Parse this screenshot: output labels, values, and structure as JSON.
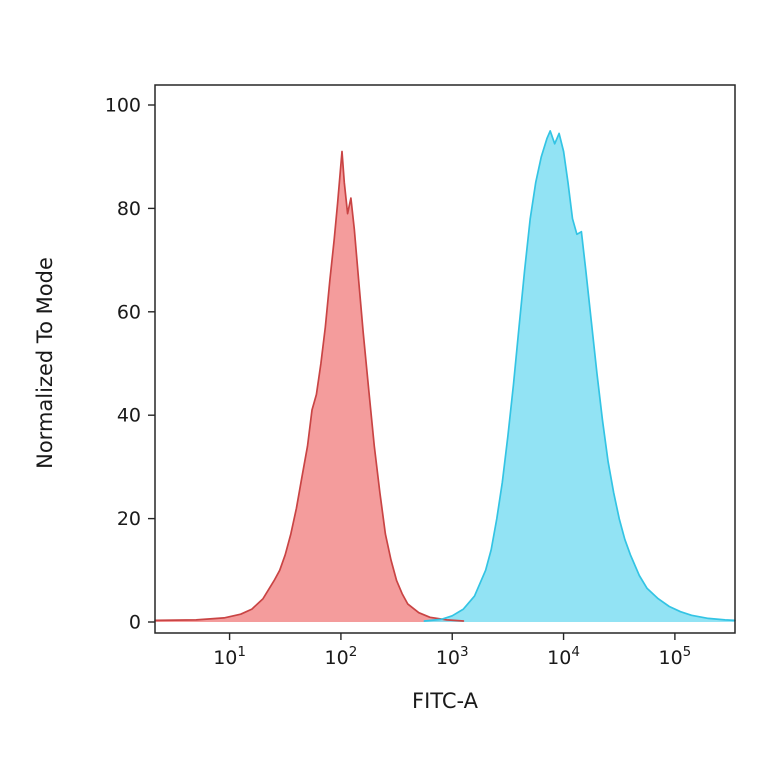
{
  "figure": {
    "background": "#ffffff"
  },
  "chart_data": {
    "type": "area",
    "subtype": "flow-cytometry-histogram",
    "title": "",
    "xlabel": "FITC-A",
    "ylabel": "Normalized To Mode",
    "x_scale": "log",
    "x_tick_exponents": [
      1,
      2,
      3,
      4,
      5
    ],
    "x_tick_base": "10",
    "y_ticks": [
      0,
      20,
      40,
      60,
      80,
      100
    ],
    "x_log_range": [
      0.33,
      5.54
    ],
    "ylim": [
      0,
      100
    ],
    "grid": "off",
    "legend": "none",
    "axis_color": "#262626",
    "text_color": "#1a1a1a",
    "series": [
      {
        "name": "red-population",
        "fill": "#f28b8b",
        "fill_opacity": 0.85,
        "stroke": "#c94444",
        "peak_logx": 2.0,
        "peak_y": 91,
        "points": [
          [
            0.33,
            0.3
          ],
          [
            0.7,
            0.4
          ],
          [
            0.95,
            0.8
          ],
          [
            1.1,
            1.5
          ],
          [
            1.2,
            2.5
          ],
          [
            1.3,
            4.5
          ],
          [
            1.4,
            8
          ],
          [
            1.45,
            10
          ],
          [
            1.5,
            13
          ],
          [
            1.55,
            17
          ],
          [
            1.6,
            22
          ],
          [
            1.65,
            28
          ],
          [
            1.7,
            34
          ],
          [
            1.74,
            41
          ],
          [
            1.78,
            44
          ],
          [
            1.82,
            50
          ],
          [
            1.86,
            57
          ],
          [
            1.9,
            66
          ],
          [
            1.94,
            74
          ],
          [
            1.97,
            81
          ],
          [
            1.99,
            86
          ],
          [
            2.01,
            91
          ],
          [
            2.03,
            85
          ],
          [
            2.06,
            79
          ],
          [
            2.09,
            82
          ],
          [
            2.12,
            76
          ],
          [
            2.16,
            66
          ],
          [
            2.2,
            56
          ],
          [
            2.25,
            45
          ],
          [
            2.3,
            34
          ],
          [
            2.35,
            25
          ],
          [
            2.4,
            17
          ],
          [
            2.45,
            12
          ],
          [
            2.5,
            8
          ],
          [
            2.55,
            5.5
          ],
          [
            2.6,
            3.5
          ],
          [
            2.7,
            1.8
          ],
          [
            2.8,
            0.9
          ],
          [
            2.95,
            0.4
          ],
          [
            3.1,
            0.2
          ]
        ]
      },
      {
        "name": "cyan-population",
        "fill": "#86e0f3",
        "fill_opacity": 0.9,
        "stroke": "#33c4e4",
        "peak_logx": 3.9,
        "peak_y": 95,
        "points": [
          [
            2.75,
            0.2
          ],
          [
            2.9,
            0.5
          ],
          [
            3.0,
            1.2
          ],
          [
            3.1,
            2.5
          ],
          [
            3.2,
            5
          ],
          [
            3.3,
            10
          ],
          [
            3.35,
            14
          ],
          [
            3.4,
            20
          ],
          [
            3.45,
            27
          ],
          [
            3.5,
            36
          ],
          [
            3.55,
            46
          ],
          [
            3.6,
            57
          ],
          [
            3.65,
            68
          ],
          [
            3.7,
            78
          ],
          [
            3.75,
            85
          ],
          [
            3.8,
            90
          ],
          [
            3.85,
            93.5
          ],
          [
            3.88,
            95
          ],
          [
            3.92,
            92.5
          ],
          [
            3.96,
            94.5
          ],
          [
            4.0,
            91
          ],
          [
            4.04,
            85
          ],
          [
            4.08,
            78
          ],
          [
            4.12,
            75
          ],
          [
            4.16,
            75.5
          ],
          [
            4.2,
            68
          ],
          [
            4.25,
            58
          ],
          [
            4.3,
            48
          ],
          [
            4.35,
            39
          ],
          [
            4.4,
            31
          ],
          [
            4.45,
            25
          ],
          [
            4.5,
            20
          ],
          [
            4.55,
            16
          ],
          [
            4.6,
            13
          ],
          [
            4.68,
            9
          ],
          [
            4.75,
            6.5
          ],
          [
            4.85,
            4.5
          ],
          [
            4.95,
            3
          ],
          [
            5.05,
            2
          ],
          [
            5.15,
            1.3
          ],
          [
            5.3,
            0.7
          ],
          [
            5.45,
            0.4
          ],
          [
            5.54,
            0.3
          ]
        ]
      }
    ]
  }
}
